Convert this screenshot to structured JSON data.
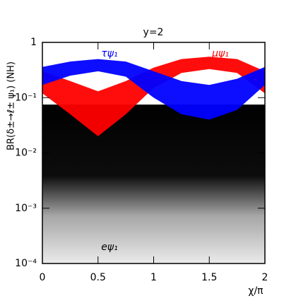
{
  "chart_data": {
    "type": "band",
    "title": "y=2",
    "x_label": "χ/π",
    "y_label": "BR(δ±→ℓ± ψ₁) (NH)",
    "log_y": true,
    "xlim": [
      0,
      2
    ],
    "ylim": [
      0.0001,
      1
    ],
    "xticks": [
      0,
      0.5,
      1,
      1.5,
      2
    ],
    "yticks": [
      1,
      {
        "value": 0.1,
        "label": "10⁻¹"
      },
      {
        "value": 0.01,
        "label": "10⁻²"
      },
      {
        "value": 0.001,
        "label": "10⁻³"
      },
      {
        "value": 0.0001,
        "label": "10⁻⁴"
      }
    ],
    "x": [
      0,
      0.25,
      0.5,
      0.75,
      1,
      1.25,
      1.5,
      1.75,
      2
    ],
    "series": [
      {
        "name": "eψ₁",
        "color": "#000000",
        "upper": [
          0.075,
          0.075,
          0.075,
          0.075,
          0.075,
          0.075,
          0.075,
          0.075,
          0.075
        ],
        "lower": [
          0.0001,
          0.0001,
          0.0001,
          0.0001,
          0.0001,
          0.0001,
          0.0001,
          0.0001,
          0.0001
        ]
      },
      {
        "name": "μψ₁",
        "color": "#ff0000",
        "upper": [
          0.3,
          0.2,
          0.13,
          0.2,
          0.35,
          0.5,
          0.55,
          0.5,
          0.3
        ],
        "lower": [
          0.12,
          0.05,
          0.02,
          0.05,
          0.15,
          0.28,
          0.33,
          0.28,
          0.12
        ]
      },
      {
        "name": "τψ₁",
        "color": "#0000ff",
        "upper": [
          0.36,
          0.45,
          0.5,
          0.45,
          0.3,
          0.2,
          0.17,
          0.22,
          0.36
        ],
        "lower": [
          0.17,
          0.25,
          0.3,
          0.24,
          0.1,
          0.05,
          0.04,
          0.06,
          0.17
        ]
      }
    ]
  }
}
